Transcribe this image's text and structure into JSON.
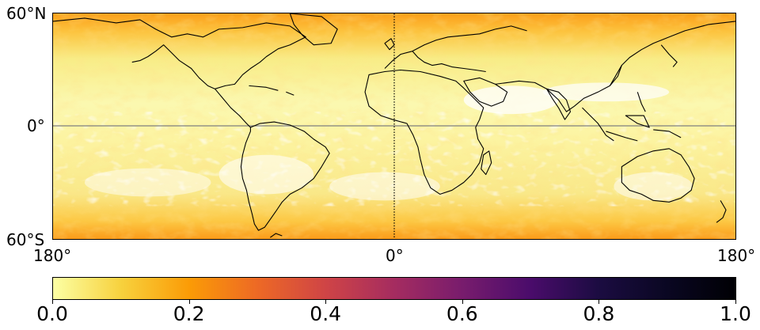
{
  "map": {
    "lat_labels": [
      "60°N",
      "0°",
      "60°S"
    ],
    "lon_labels": [
      "180°",
      "0°",
      "180°"
    ],
    "lat_range": [
      -60,
      60
    ],
    "lon_range": [
      -180,
      180
    ],
    "equator_line": true,
    "prime_meridian_line": "dotted",
    "coastlines": true
  },
  "colorbar": {
    "colormap": "inferno_r",
    "range": [
      0.0,
      1.0
    ],
    "ticks": [
      "0.0",
      "0.2",
      "0.4",
      "0.6",
      "0.8",
      "1.0"
    ]
  },
  "colors": {
    "low": "#fcffa4",
    "mid": "#fb9b06",
    "high": "#000004",
    "coastline": "#000000"
  }
}
